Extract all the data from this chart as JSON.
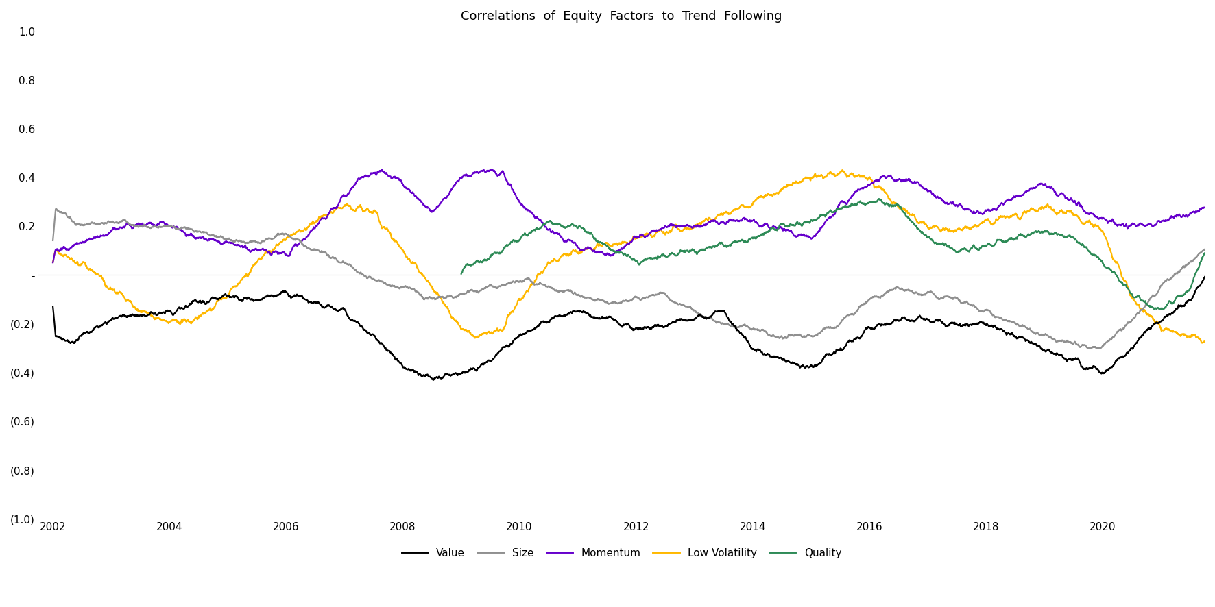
{
  "title": "Correlations  of  Equity  Factors  to  Trend  Following",
  "title_fontsize": 13,
  "line_colors": {
    "Value": "#000000",
    "Size": "#909090",
    "Momentum": "#6600CC",
    "Low Volatility": "#FFB800",
    "Quality": "#2E8B57"
  },
  "line_width": 1.6,
  "ylim": [
    -1.0,
    1.0
  ],
  "ytick_labels": [
    "1.0",
    "0.8",
    "0.6",
    "0.4",
    "0.2",
    "-",
    "(0.2)",
    "(0.4)",
    "(0.6)",
    "(0.8)",
    "(1.0)"
  ],
  "ytick_values": [
    1.0,
    0.8,
    0.6,
    0.4,
    0.2,
    0.0,
    -0.2,
    -0.4,
    -0.6,
    -0.8,
    -1.0
  ],
  "xlim": [
    2001.75,
    2021.75
  ],
  "xtick_values": [
    2002,
    2004,
    2006,
    2008,
    2010,
    2012,
    2014,
    2016,
    2018,
    2020
  ],
  "hline_y": 0.0,
  "hline_color": "#c8c8c8",
  "background_color": "#ffffff",
  "legend_entries": [
    "Value",
    "Size",
    "Momentum",
    "Low Volatility",
    "Quality"
  ],
  "legend_fontsize": 11,
  "axis_fontsize": 11
}
